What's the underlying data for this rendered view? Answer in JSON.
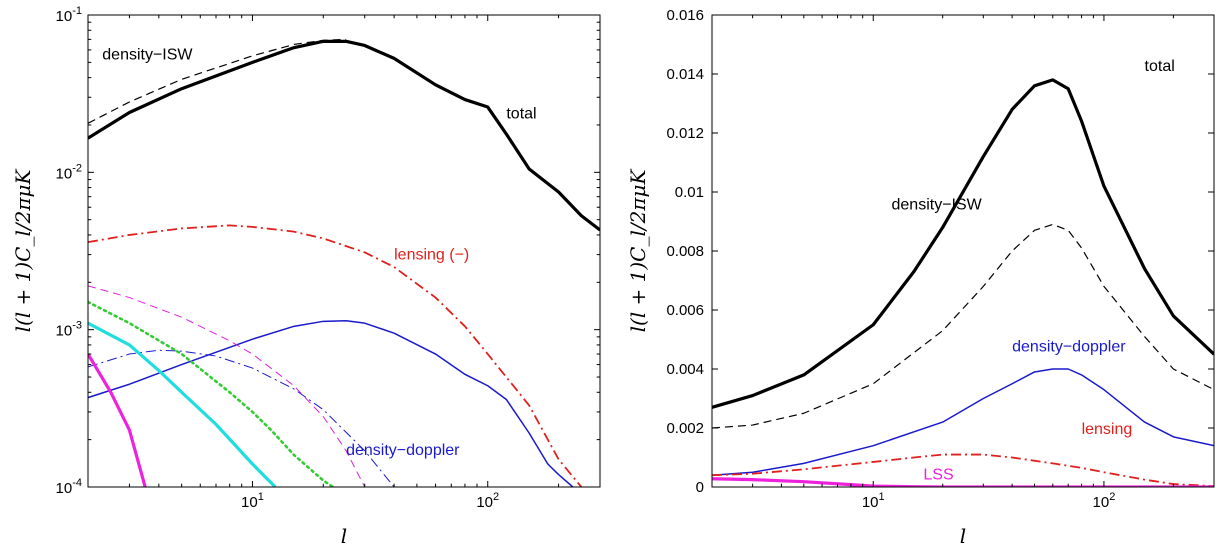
{
  "chart_data": [
    {
      "type": "line",
      "xscale": "log",
      "yscale": "log",
      "xlim": [
        2,
        300
      ],
      "ylim": [
        0.0001,
        0.1
      ],
      "xticks": [
        {
          "value": 10,
          "base": "10",
          "exp": "1"
        },
        {
          "value": 100,
          "base": "10",
          "exp": "2"
        }
      ],
      "yticks": [
        {
          "value": 0.0001,
          "base": "10",
          "exp": "-4"
        },
        {
          "value": 0.001,
          "base": "10",
          "exp": "-3"
        },
        {
          "value": 0.01,
          "base": "10",
          "exp": "-2"
        },
        {
          "value": 0.1,
          "base": "10",
          "exp": "-1"
        }
      ],
      "xlabel": "l",
      "ylabel": "l(l + 1)C_l/2πμK",
      "grid": false,
      "series": [
        {
          "color": "#000000",
          "style": "solid",
          "width": 3.2,
          "x": [
            2,
            3,
            5,
            10,
            15,
            20,
            25,
            30,
            40,
            60,
            80,
            100,
            120,
            150,
            200,
            250,
            300
          ],
          "y": [
            0.0165,
            0.024,
            0.034,
            0.05,
            0.062,
            0.068,
            0.068,
            0.064,
            0.053,
            0.036,
            0.029,
            0.026,
            0.0175,
            0.0105,
            0.0075,
            0.0053,
            0.0043
          ]
        },
        {
          "color": "#000000",
          "style": "dashed",
          "width": 1.2,
          "x": [
            2,
            3,
            5,
            10,
            15,
            20,
            25
          ],
          "y": [
            0.0205,
            0.028,
            0.039,
            0.055,
            0.065,
            0.069,
            0.07
          ]
        },
        {
          "color": "#e0201c",
          "style": "dashdot",
          "width": 1.8,
          "x": [
            2,
            3,
            5,
            8,
            10,
            15,
            20,
            30,
            40,
            60,
            80,
            100,
            150,
            200,
            250
          ],
          "y": [
            0.0036,
            0.004,
            0.0044,
            0.0046,
            0.0045,
            0.0042,
            0.0038,
            0.0031,
            0.0025,
            0.0016,
            0.00105,
            0.0007,
            0.00033,
            0.00015,
            0.0001
          ]
        },
        {
          "color": "#1a1acc",
          "style": "solid",
          "width": 1.5,
          "x": [
            2,
            3,
            5,
            10,
            15,
            20,
            25,
            30,
            40,
            60,
            80,
            100,
            120,
            150,
            180,
            200,
            230
          ],
          "y": [
            0.00037,
            0.00045,
            0.0006,
            0.00087,
            0.00105,
            0.00113,
            0.00114,
            0.0011,
            0.00095,
            0.0007,
            0.00052,
            0.00044,
            0.00036,
            0.00022,
            0.00014,
            0.00012,
            0.0001
          ]
        },
        {
          "color": "#1a1acc",
          "style": "dashdot",
          "width": 1.0,
          "x": [
            2,
            3,
            4,
            5,
            7,
            10,
            15,
            20,
            30,
            40
          ],
          "y": [
            0.00058,
            0.0007,
            0.00074,
            0.00073,
            0.00068,
            0.00057,
            0.00042,
            0.00031,
            0.00017,
            0.0001
          ]
        },
        {
          "color": "#dd22dd",
          "style": "dashed",
          "width": 1.0,
          "x": [
            2,
            3,
            5,
            8,
            10,
            15,
            20,
            25,
            30
          ],
          "y": [
            0.0019,
            0.0016,
            0.0012,
            0.00085,
            0.0007,
            0.00044,
            0.00028,
            0.00017,
            0.0001
          ]
        },
        {
          "color": "#33cc33",
          "style": "dotted",
          "width": 2.6,
          "x": [
            2,
            3,
            5,
            8,
            10,
            12,
            15,
            20,
            22
          ],
          "y": [
            0.0015,
            0.0011,
            0.0007,
            0.0004,
            0.0003,
            0.00023,
            0.00016,
            0.00011,
            0.0001
          ]
        },
        {
          "color": "#22dddd",
          "style": "solid",
          "width": 3.2,
          "x": [
            2,
            3,
            4,
            5,
            7,
            10,
            12.5
          ],
          "y": [
            0.0011,
            0.0008,
            0.00055,
            0.0004,
            0.00025,
            0.00014,
            0.0001
          ]
        },
        {
          "color": "#ee22dd",
          "style": "solid",
          "width": 3.2,
          "x": [
            2,
            2.5,
            3,
            3.5
          ],
          "y": [
            0.0007,
            0.0004,
            0.00023,
            0.0001
          ]
        }
      ],
      "annotations": [
        {
          "text": "density−ISW",
          "x": 2.3,
          "y": 0.052,
          "color": "#000000"
        },
        {
          "text": "total",
          "x": 120,
          "y": 0.022,
          "color": "#000000"
        },
        {
          "text": "lensing (−)",
          "x": 40,
          "y": 0.0028,
          "color": "#e0201c"
        },
        {
          "text": "density−doppler",
          "x": 25,
          "y": 0.00016,
          "color": "#1a1acc"
        }
      ]
    },
    {
      "type": "line",
      "xscale": "log",
      "yscale": "linear",
      "xlim": [
        2,
        300
      ],
      "ylim": [
        0,
        0.016
      ],
      "xticks": [
        {
          "value": 10,
          "base": "10",
          "exp": "1"
        },
        {
          "value": 100,
          "base": "10",
          "exp": "2"
        }
      ],
      "yticks": [
        {
          "value": 0,
          "label": "0"
        },
        {
          "value": 0.002,
          "label": "0.002"
        },
        {
          "value": 0.004,
          "label": "0.004"
        },
        {
          "value": 0.006,
          "label": "0.006"
        },
        {
          "value": 0.008,
          "label": "0.008"
        },
        {
          "value": 0.01,
          "label": "0.01"
        },
        {
          "value": 0.012,
          "label": "0.012"
        },
        {
          "value": 0.014,
          "label": "0.014"
        },
        {
          "value": 0.016,
          "label": "0.016"
        }
      ],
      "xlabel": "l",
      "ylabel": "l(l + 1)C_l/2πμK",
      "grid": false,
      "series": [
        {
          "color": "#000000",
          "style": "solid",
          "width": 3.2,
          "x": [
            2,
            3,
            5,
            10,
            15,
            20,
            30,
            40,
            50,
            60,
            70,
            80,
            100,
            150,
            200,
            300
          ],
          "y": [
            0.0027,
            0.0031,
            0.0038,
            0.0055,
            0.0073,
            0.0088,
            0.0112,
            0.0128,
            0.0136,
            0.0138,
            0.0135,
            0.0124,
            0.0102,
            0.0074,
            0.0058,
            0.0045
          ]
        },
        {
          "color": "#000000",
          "style": "dashed",
          "width": 1.2,
          "x": [
            2,
            3,
            5,
            10,
            20,
            30,
            40,
            50,
            60,
            70,
            80,
            100,
            150,
            200,
            300
          ],
          "y": [
            0.002,
            0.0021,
            0.0025,
            0.0035,
            0.0053,
            0.0068,
            0.008,
            0.0087,
            0.0089,
            0.0087,
            0.0081,
            0.0068,
            0.0051,
            0.004,
            0.0033
          ]
        },
        {
          "color": "#1a1acc",
          "style": "solid",
          "width": 1.5,
          "x": [
            2,
            3,
            5,
            10,
            20,
            30,
            40,
            50,
            60,
            70,
            80,
            100,
            150,
            200,
            300
          ],
          "y": [
            0.0004,
            0.0005,
            0.0008,
            0.0014,
            0.0022,
            0.003,
            0.0035,
            0.0039,
            0.004,
            0.004,
            0.0038,
            0.0033,
            0.0022,
            0.0017,
            0.0014
          ]
        },
        {
          "color": "#e0201c",
          "style": "dashdot",
          "width": 1.8,
          "x": [
            2,
            3,
            5,
            10,
            15,
            20,
            25,
            30,
            40,
            60,
            80,
            100,
            150,
            200,
            300
          ],
          "y": [
            0.0004,
            0.00045,
            0.0006,
            0.00085,
            0.001,
            0.0011,
            0.0011,
            0.0011,
            0.001,
            0.0008,
            0.00065,
            0.0005,
            0.00025,
            0.0001,
            3e-05
          ]
        },
        {
          "color": "#ee22dd",
          "style": "solid",
          "width": 3.2,
          "x": [
            2,
            3,
            5,
            8,
            10,
            15,
            20,
            300
          ],
          "y": [
            0.00028,
            0.00025,
            0.00018,
            8e-05,
            3e-05,
            1e-05,
            0.0,
            0.0
          ]
        }
      ],
      "annotations": [
        {
          "text": "total",
          "x": 150,
          "y": 0.0141,
          "color": "#000000"
        },
        {
          "text": "density−ISW",
          "x": 12,
          "y": 0.0094,
          "color": "#000000"
        },
        {
          "text": "density−doppler",
          "x": 40,
          "y": 0.0046,
          "color": "#1a1acc"
        },
        {
          "text": "lensing",
          "x": 80,
          "y": 0.0018,
          "color": "#e0201c"
        },
        {
          "text": "LSS",
          "x": 16.5,
          "y": 0.00025,
          "color": "#ee22dd"
        }
      ]
    }
  ]
}
